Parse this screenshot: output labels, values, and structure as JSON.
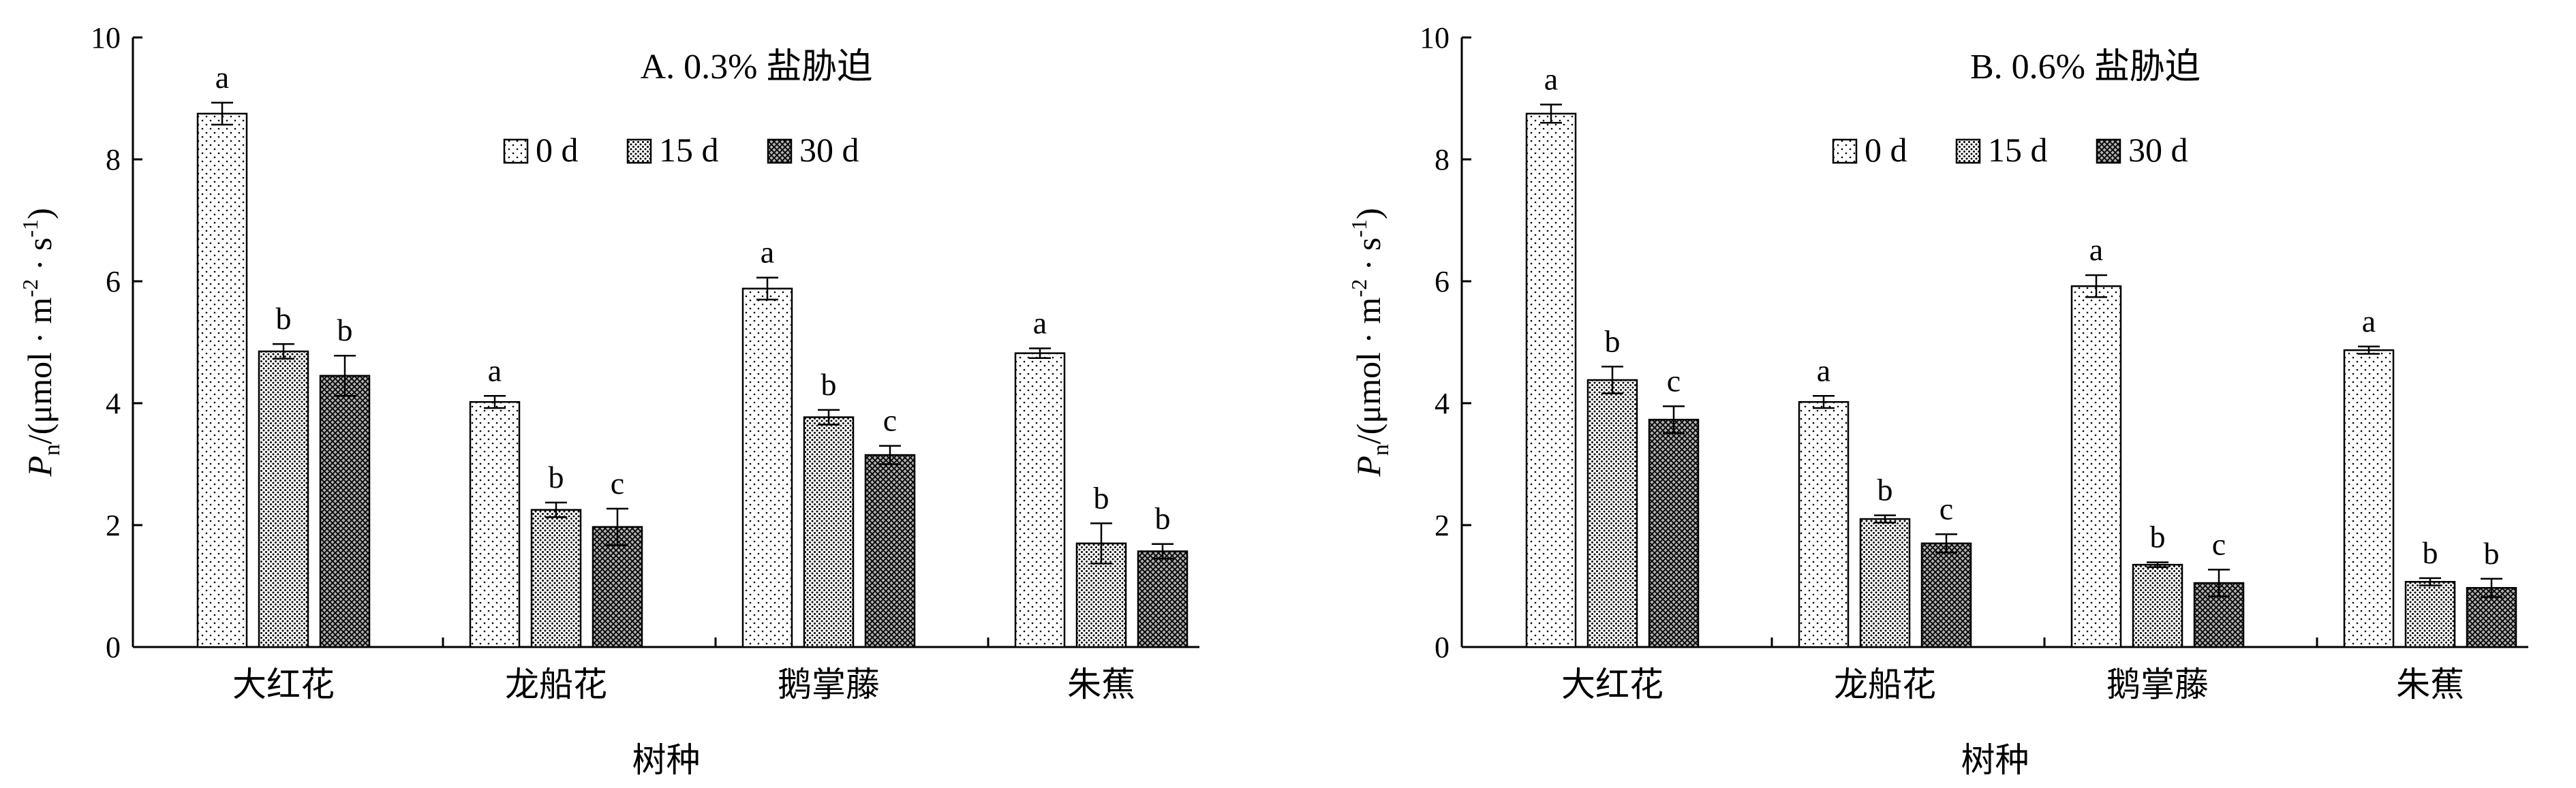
{
  "chart_data": [
    {
      "type": "bar",
      "title": "A. 0.3% 盐胁迫",
      "xlabel": "树种",
      "ylabel_main": "P",
      "ylabel_sub": "n",
      "ylabel_rest_1": "/(μmol · m",
      "ylabel_sup_1": "-2",
      "ylabel_rest_2": " · s",
      "ylabel_sup_2": "-1",
      "ylabel_rest_3": ")",
      "ylim": [
        0,
        10
      ],
      "yticks": [
        "0",
        "2",
        "4",
        "6",
        "8",
        "10"
      ],
      "grid": false,
      "legend_position": "top-center",
      "categories": [
        "大红花",
        "龙船花",
        "鹅掌藤",
        "朱蕉"
      ],
      "series": [
        {
          "name": "0 d",
          "pattern": "dots-sparse",
          "values": [
            8.75,
            4.02,
            5.88,
            4.82
          ],
          "errors": [
            0.18,
            0.1,
            0.18,
            0.08
          ],
          "letters": [
            "a",
            "a",
            "a",
            "a"
          ]
        },
        {
          "name": "15 d",
          "pattern": "dots-dense",
          "values": [
            4.85,
            2.25,
            3.77,
            1.7
          ],
          "errors": [
            0.12,
            0.12,
            0.12,
            0.33
          ],
          "letters": [
            "b",
            "b",
            "b",
            "b"
          ]
        },
        {
          "name": "30 d",
          "pattern": "crosshatch",
          "values": [
            4.45,
            1.97,
            3.15,
            1.57
          ],
          "errors": [
            0.33,
            0.3,
            0.15,
            0.12
          ],
          "letters": [
            "b",
            "c",
            "c",
            "b"
          ]
        }
      ]
    },
    {
      "type": "bar",
      "title": "B. 0.6% 盐胁迫",
      "xlabel": "树种",
      "ylabel_main": "P",
      "ylabel_sub": "n",
      "ylabel_rest_1": "/(μmol · m",
      "ylabel_sup_1": "-2",
      "ylabel_rest_2": " · s",
      "ylabel_sup_2": "-1",
      "ylabel_rest_3": ")",
      "ylim": [
        0,
        10
      ],
      "yticks": [
        "0",
        "2",
        "4",
        "6",
        "8",
        "10"
      ],
      "grid": false,
      "legend_position": "top-center",
      "categories": [
        "大红花",
        "龙船花",
        "鹅掌藤",
        "朱蕉"
      ],
      "series": [
        {
          "name": "0 d",
          "pattern": "dots-sparse",
          "values": [
            8.75,
            4.02,
            5.92,
            4.87
          ],
          "errors": [
            0.15,
            0.1,
            0.18,
            0.06
          ],
          "letters": [
            "a",
            "a",
            "a",
            "a"
          ]
        },
        {
          "name": "15 d",
          "pattern": "dots-dense",
          "values": [
            4.38,
            2.1,
            1.35,
            1.07
          ],
          "errors": [
            0.22,
            0.06,
            0.04,
            0.06
          ],
          "letters": [
            "b",
            "b",
            "b",
            "b"
          ]
        },
        {
          "name": "30 d",
          "pattern": "crosshatch",
          "values": [
            3.73,
            1.7,
            1.05,
            0.97
          ],
          "errors": [
            0.22,
            0.15,
            0.22,
            0.15
          ],
          "letters": [
            "c",
            "c",
            "c",
            "b"
          ]
        }
      ]
    }
  ]
}
